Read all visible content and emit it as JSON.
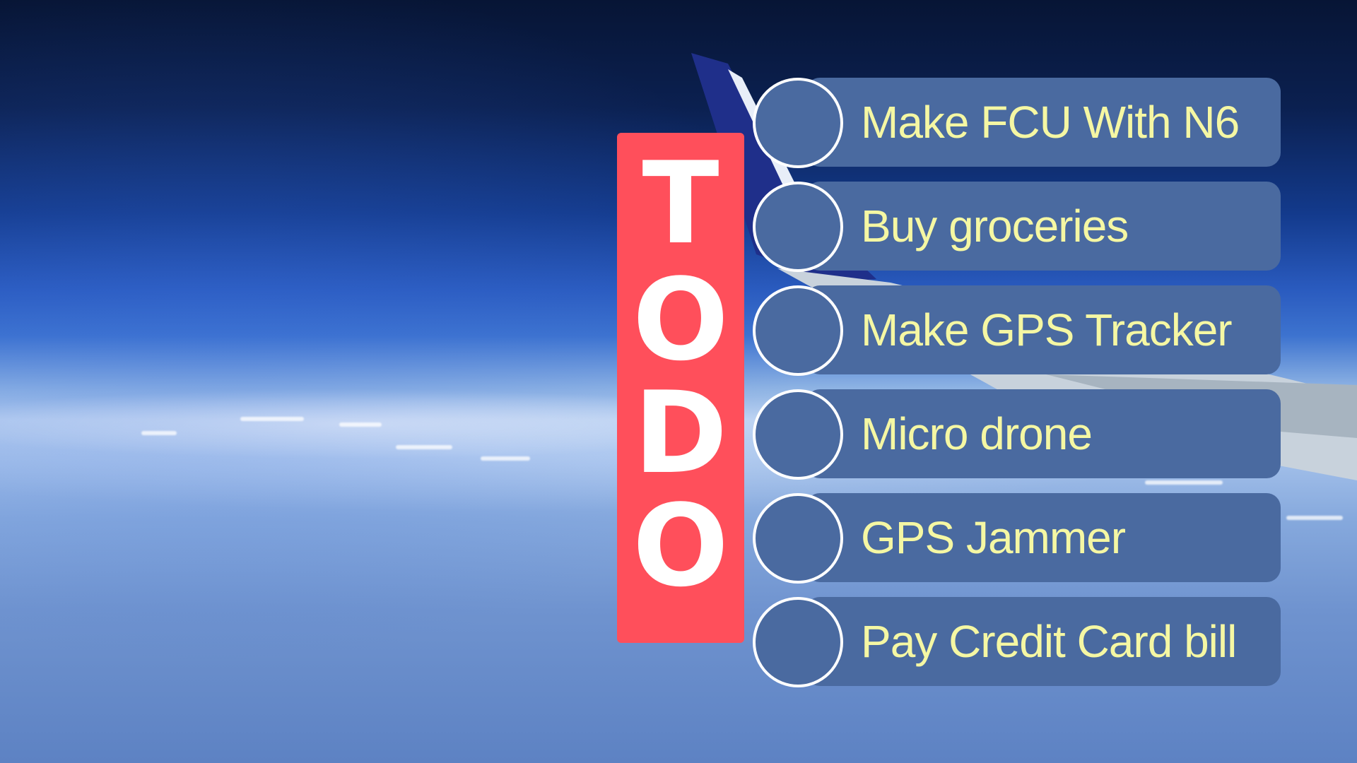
{
  "banner": {
    "letters": [
      "T",
      "O",
      "D",
      "O"
    ],
    "color": "#ff4f5b"
  },
  "tasks": [
    {
      "label": "Make FCU With N6",
      "done": false
    },
    {
      "label": "Buy groceries",
      "done": false
    },
    {
      "label": "Make GPS Tracker",
      "done": false
    },
    {
      "label": "Micro drone",
      "done": false
    },
    {
      "label": "GPS Jammer",
      "done": false
    },
    {
      "label": "Pay Credit Card bill",
      "done": false
    }
  ],
  "colors": {
    "pill": "#4a6aa0",
    "task_text": "#f5f7a3",
    "checkbox_border": "#ffffff"
  }
}
